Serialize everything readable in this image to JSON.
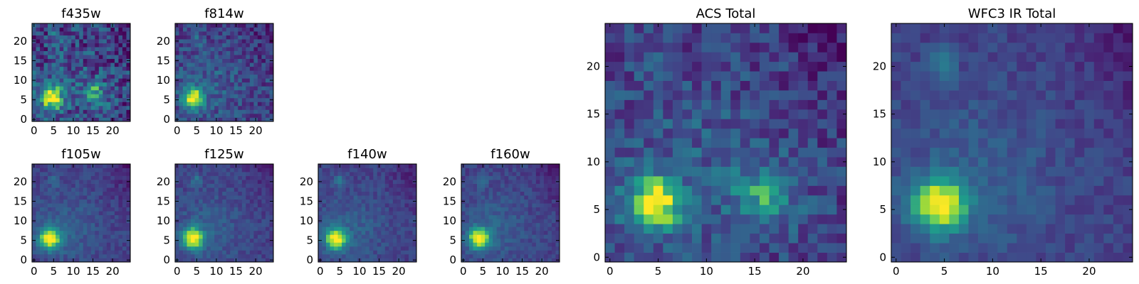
{
  "figure": {
    "colormap_name": "viridis",
    "colormap_stops": [
      "#440154",
      "#482777",
      "#3f4a8a",
      "#31678e",
      "#26838f",
      "#1f9d8a",
      "#6cce5a",
      "#b6de2b",
      "#fee825"
    ]
  },
  "chart_data": [
    {
      "id": "f435w",
      "type": "heatmap",
      "title": "f435w",
      "grid_size": 25,
      "xlim": [
        -0.5,
        24.5
      ],
      "ylim": [
        -0.5,
        24.5
      ],
      "xticks": [
        0,
        5,
        10,
        15,
        20
      ],
      "yticks": [
        0,
        5,
        10,
        15,
        20
      ],
      "bright_spots": [
        [
          4.5,
          5.5
        ],
        [
          15.5,
          6.5
        ]
      ],
      "noise": 0.45
    },
    {
      "id": "f814w",
      "type": "heatmap",
      "title": "f814w",
      "grid_size": 25,
      "xlim": [
        -0.5,
        24.5
      ],
      "ylim": [
        -0.5,
        24.5
      ],
      "xticks": [
        0,
        5,
        10,
        15,
        20
      ],
      "yticks": [
        0,
        5,
        10,
        15,
        20
      ],
      "bright_spots": [
        [
          4,
          5.5
        ]
      ],
      "noise": 0.3
    },
    {
      "id": "f105w",
      "type": "heatmap",
      "title": "f105w",
      "grid_size": 25,
      "xlim": [
        -0.5,
        24.5
      ],
      "ylim": [
        -0.5,
        24.5
      ],
      "xticks": [
        0,
        5,
        10,
        15,
        20
      ],
      "yticks": [
        0,
        5,
        10,
        15,
        20
      ],
      "bright_spots": [
        [
          4,
          5.5
        ]
      ],
      "noise": 0.15
    },
    {
      "id": "f125w",
      "type": "heatmap",
      "title": "f125w",
      "grid_size": 25,
      "xlim": [
        -0.5,
        24.5
      ],
      "ylim": [
        -0.5,
        24.5
      ],
      "xticks": [
        0,
        5,
        10,
        15,
        20
      ],
      "yticks": [
        0,
        5,
        10,
        15,
        20
      ],
      "bright_spots": [
        [
          4,
          5.5
        ]
      ],
      "noise": 0.15
    },
    {
      "id": "f140w",
      "type": "heatmap",
      "title": "f140w",
      "grid_size": 25,
      "xlim": [
        -0.5,
        24.5
      ],
      "ylim": [
        -0.5,
        24.5
      ],
      "xticks": [
        0,
        5,
        10,
        15,
        20
      ],
      "yticks": [
        0,
        5,
        10,
        15,
        20
      ],
      "bright_spots": [
        [
          4,
          5.5
        ]
      ],
      "noise": 0.15
    },
    {
      "id": "f160w",
      "type": "heatmap",
      "title": "f160w",
      "grid_size": 25,
      "xlim": [
        -0.5,
        24.5
      ],
      "ylim": [
        -0.5,
        24.5
      ],
      "xticks": [
        0,
        5,
        10,
        15,
        20
      ],
      "yticks": [
        0,
        5,
        10,
        15,
        20
      ],
      "bright_spots": [
        [
          4,
          5.5
        ]
      ],
      "noise": 0.15
    },
    {
      "id": "acs_total",
      "type": "heatmap",
      "title": "ACS Total",
      "grid_size": 25,
      "xlim": [
        -0.5,
        24.5
      ],
      "ylim": [
        -0.5,
        24.5
      ],
      "xticks": [
        0,
        5,
        10,
        15,
        20
      ],
      "yticks": [
        0,
        5,
        10,
        15,
        20
      ],
      "bright_spots": [
        [
          4.5,
          5.5
        ],
        [
          16,
          6.5
        ]
      ],
      "noise": 0.3
    },
    {
      "id": "wfc3_ir_total",
      "type": "heatmap",
      "title": "WFC3 IR Total",
      "grid_size": 25,
      "xlim": [
        -0.5,
        24.5
      ],
      "ylim": [
        -0.5,
        24.5
      ],
      "xticks": [
        0,
        5,
        10,
        15,
        20
      ],
      "yticks": [
        0,
        5,
        10,
        15,
        20
      ],
      "bright_spots": [
        [
          4.5,
          5.5
        ]
      ],
      "noise": 0.15
    }
  ]
}
